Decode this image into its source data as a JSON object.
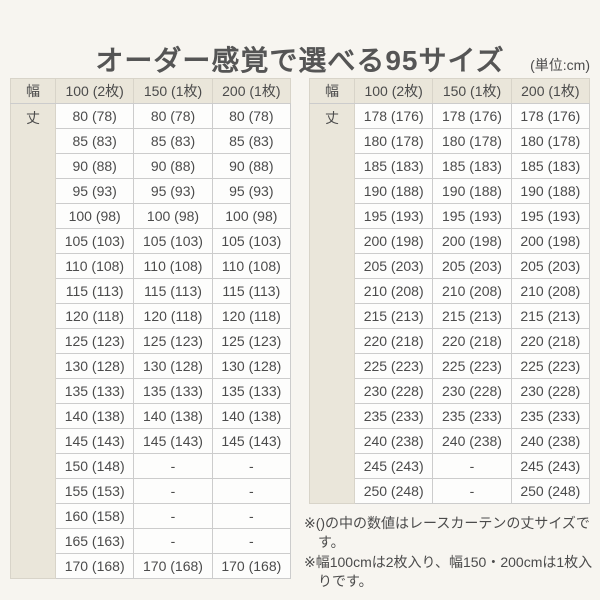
{
  "title": "オーダー感覚で選べる95サイズ",
  "unit_note": "(単位:cm)",
  "colors": {
    "page_bg": "#f7f5f0",
    "header_cell_bg": "#eae6da",
    "body_cell_bg": "#fdfdfc",
    "border": "#cccccc",
    "text": "#4b4b4b"
  },
  "tables": [
    {
      "corner_label": "幅",
      "length_label": "丈",
      "columns": [
        "100 (2枚)",
        "150 (1枚)",
        "200 (1枚)"
      ],
      "rows": [
        [
          "80 (78)",
          "80 (78)",
          "80 (78)"
        ],
        [
          "85 (83)",
          "85 (83)",
          "85 (83)"
        ],
        [
          "90 (88)",
          "90 (88)",
          "90 (88)"
        ],
        [
          "95 (93)",
          "95 (93)",
          "95 (93)"
        ],
        [
          "100 (98)",
          "100 (98)",
          "100 (98)"
        ],
        [
          "105 (103)",
          "105 (103)",
          "105 (103)"
        ],
        [
          "110 (108)",
          "110 (108)",
          "110 (108)"
        ],
        [
          "115 (113)",
          "115 (113)",
          "115 (113)"
        ],
        [
          "120 (118)",
          "120 (118)",
          "120 (118)"
        ],
        [
          "125 (123)",
          "125 (123)",
          "125 (123)"
        ],
        [
          "130 (128)",
          "130 (128)",
          "130 (128)"
        ],
        [
          "135 (133)",
          "135 (133)",
          "135 (133)"
        ],
        [
          "140 (138)",
          "140 (138)",
          "140 (138)"
        ],
        [
          "145 (143)",
          "145 (143)",
          "145 (143)"
        ],
        [
          "150 (148)",
          "-",
          "-"
        ],
        [
          "155 (153)",
          "-",
          "-"
        ],
        [
          "160 (158)",
          "-",
          "-"
        ],
        [
          "165 (163)",
          "-",
          "-"
        ],
        [
          "170 (168)",
          "170 (168)",
          "170 (168)"
        ]
      ]
    },
    {
      "corner_label": "幅",
      "length_label": "丈",
      "columns": [
        "100 (2枚)",
        "150 (1枚)",
        "200 (1枚)"
      ],
      "rows": [
        [
          "178 (176)",
          "178 (176)",
          "178 (176)"
        ],
        [
          "180 (178)",
          "180 (178)",
          "180 (178)"
        ],
        [
          "185 (183)",
          "185 (183)",
          "185 (183)"
        ],
        [
          "190 (188)",
          "190 (188)",
          "190 (188)"
        ],
        [
          "195 (193)",
          "195 (193)",
          "195 (193)"
        ],
        [
          "200 (198)",
          "200 (198)",
          "200 (198)"
        ],
        [
          "205 (203)",
          "205 (203)",
          "205 (203)"
        ],
        [
          "210 (208)",
          "210 (208)",
          "210 (208)"
        ],
        [
          "215 (213)",
          "215 (213)",
          "215 (213)"
        ],
        [
          "220 (218)",
          "220 (218)",
          "220 (218)"
        ],
        [
          "225 (223)",
          "225 (223)",
          "225 (223)"
        ],
        [
          "230 (228)",
          "230 (228)",
          "230 (228)"
        ],
        [
          "235 (233)",
          "235 (233)",
          "235 (233)"
        ],
        [
          "240 (238)",
          "240 (238)",
          "240 (238)"
        ],
        [
          "245 (243)",
          "-",
          "245 (243)"
        ],
        [
          "250 (248)",
          "-",
          "250 (248)"
        ]
      ]
    }
  ],
  "notes": [
    "※()の中の数値はレースカーテンの丈サイズです。",
    "※幅100cmは2枚入り、幅150・200cmは1枚入りです。"
  ]
}
